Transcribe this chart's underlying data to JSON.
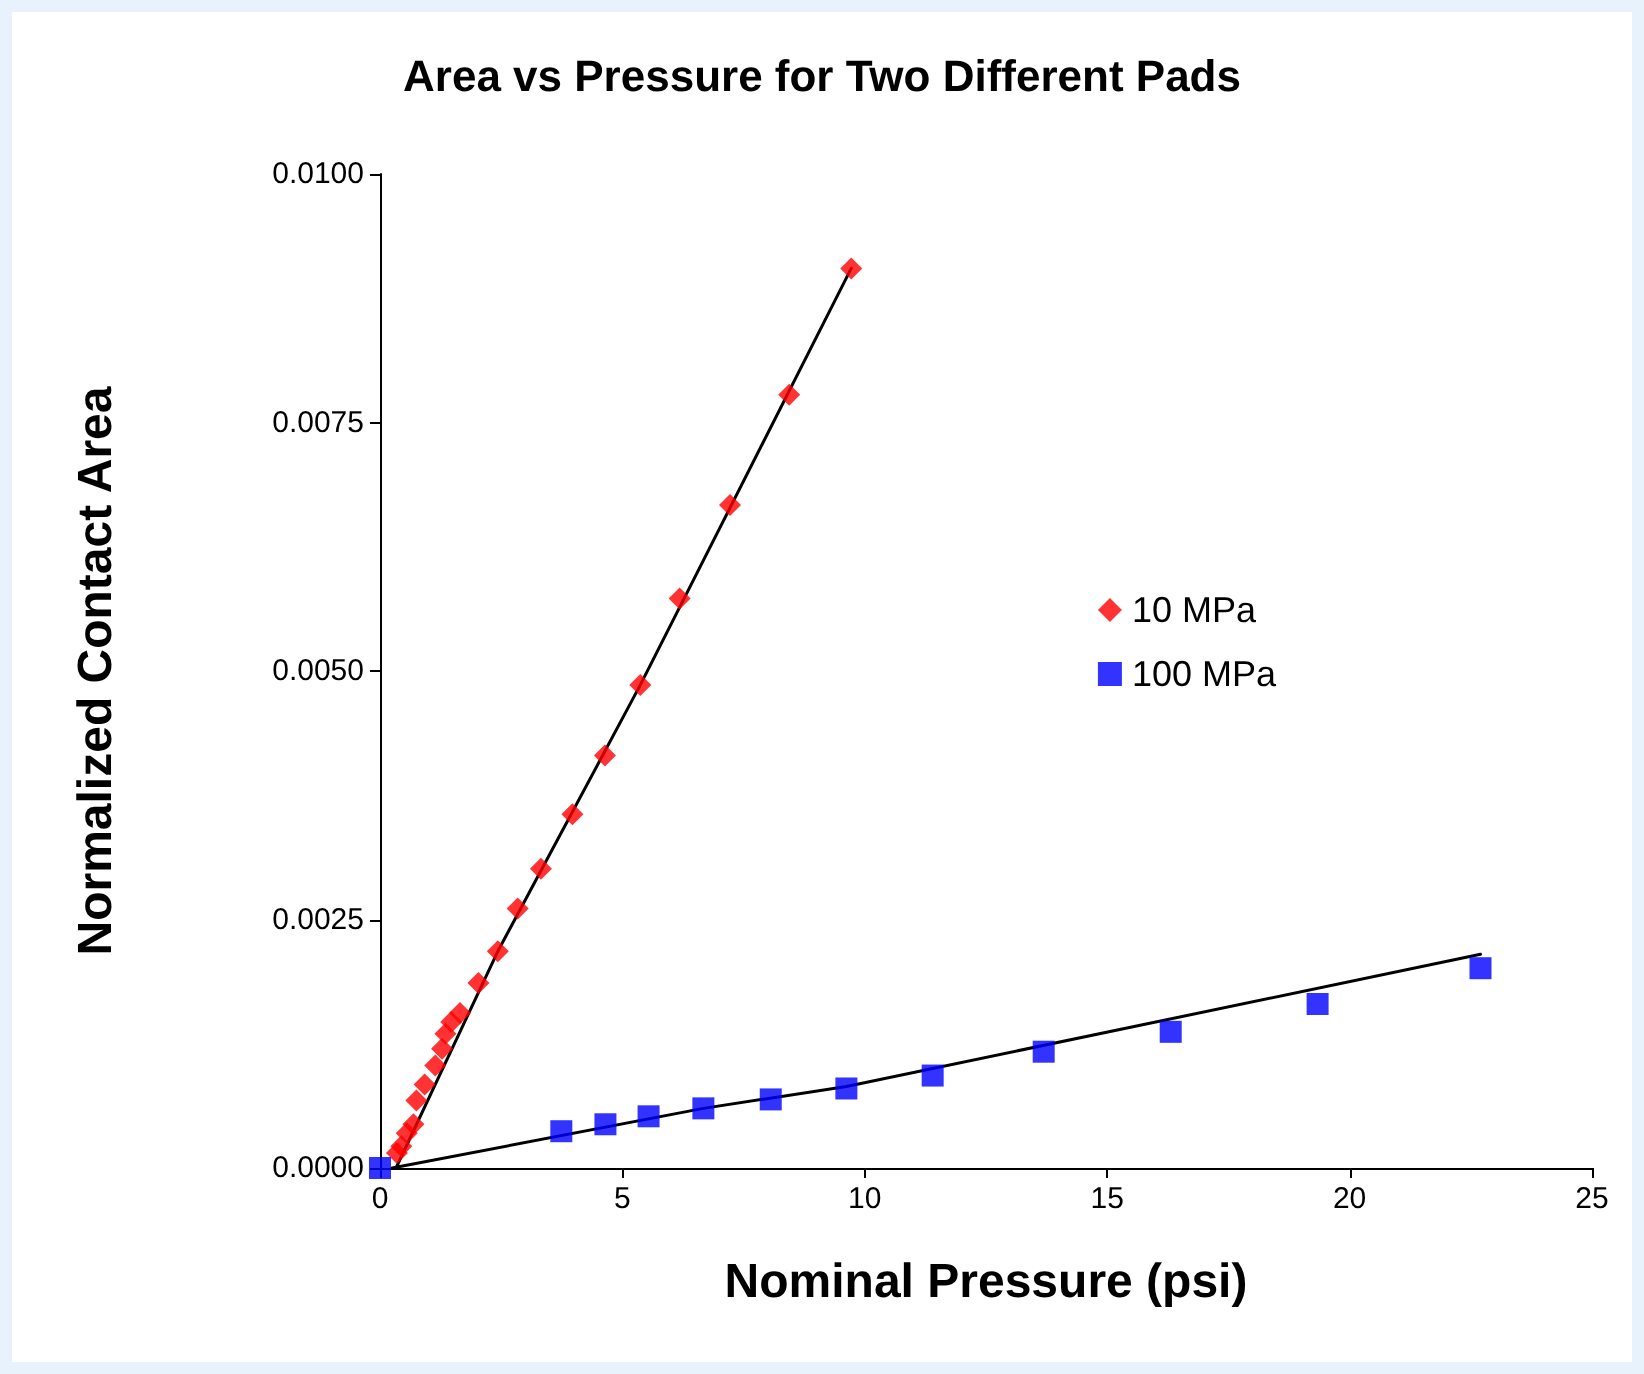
{
  "chart_data": {
    "type": "scatter",
    "title": "Area vs Pressure for Two Different Pads",
    "xlabel": "Nominal Pressure (psi)",
    "ylabel": "Normalized Contact Area",
    "xlim": [
      0,
      25
    ],
    "xticks": [
      0,
      5,
      10,
      15,
      20,
      25
    ],
    "ylim": [
      0,
      0.01
    ],
    "yticks": [
      {
        "value": 0,
        "label": "0.0000"
      },
      {
        "value": 0.0025,
        "label": "0.0025"
      },
      {
        "value": 0.005,
        "label": "0.0050"
      },
      {
        "value": 0.0075,
        "label": "0.0075"
      },
      {
        "value": 0.01,
        "label": "0.0100"
      }
    ],
    "grid": false,
    "legend": "right",
    "series": [
      {
        "name": "10 MPa",
        "color": "#ff0000",
        "marker": "diamond",
        "x": [
          0.35,
          0.44,
          0.55,
          0.69,
          0.75,
          0.92,
          1.14,
          1.28,
          1.35,
          1.47,
          1.65,
          2.03,
          2.43,
          2.84,
          3.32,
          3.97,
          4.64,
          5.37,
          6.18,
          7.22,
          8.44,
          9.72
        ],
        "values": [
          0.00015,
          0.00022,
          0.00035,
          0.00044,
          0.00068,
          0.00084,
          0.00103,
          0.0012,
          0.00135,
          0.00147,
          0.00156,
          0.00186,
          0.00218,
          0.00261,
          0.00301,
          0.00356,
          0.00415,
          0.00486,
          0.00573,
          0.00667,
          0.00778,
          0.00905
        ]
      },
      {
        "name": "100 MPa",
        "color": "#0000ff",
        "marker": "square",
        "x": [
          0,
          3.74,
          4.65,
          5.54,
          6.67,
          8.06,
          9.62,
          11.4,
          13.69,
          16.31,
          19.34,
          22.7
        ],
        "values": [
          0,
          0.00037,
          0.00044,
          0.00052,
          0.0006,
          0.00069,
          0.0008,
          0.00093,
          0.00117,
          0.00137,
          0.00165,
          0.00201
        ]
      },
      {
        "type": "line",
        "color": "#000000",
        "marker": "none",
        "x": [
          0.33,
          2.43,
          5.37,
          9.72
        ],
        "values": [
          0,
          0.00218,
          0.00486,
          0.00905
        ]
      },
      {
        "type": "line",
        "color": "#000000",
        "marker": "none",
        "x": [
          0.25,
          6.67,
          9.62,
          22.7
        ],
        "values": [
          0,
          0.0006,
          0.00082,
          0.00215
        ]
      }
    ]
  }
}
